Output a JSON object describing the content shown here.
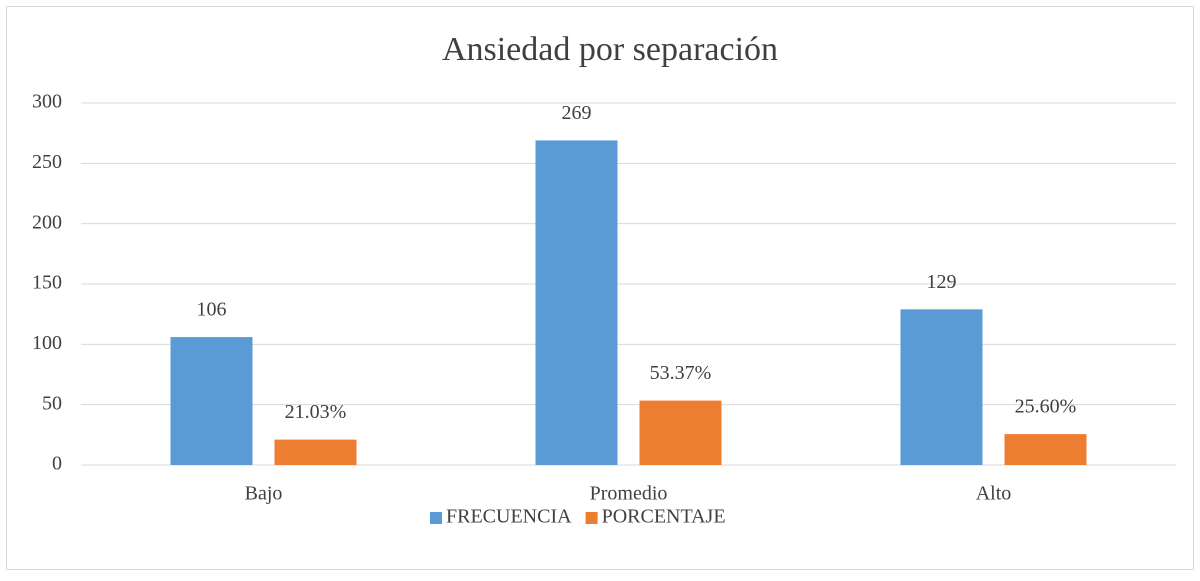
{
  "chart_data": {
    "type": "bar",
    "title": "Ansiedad por separación",
    "categories": [
      "Bajo",
      "Promedio",
      "Alto"
    ],
    "series": [
      {
        "name": "FRECUENCIA",
        "color": "#5b9bd5",
        "values": [
          106,
          269,
          129
        ]
      },
      {
        "name": "PORCENTAJE",
        "color": "#ed7d31",
        "values": [
          21.03,
          53.37,
          25.6
        ],
        "value_labels": [
          "21.03%",
          "53.37%",
          "25.60%"
        ]
      }
    ],
    "ylim": [
      0,
      300
    ],
    "yticks": [
      0,
      50,
      100,
      150,
      200,
      250,
      300
    ],
    "grid": true,
    "legend": "bottom"
  }
}
